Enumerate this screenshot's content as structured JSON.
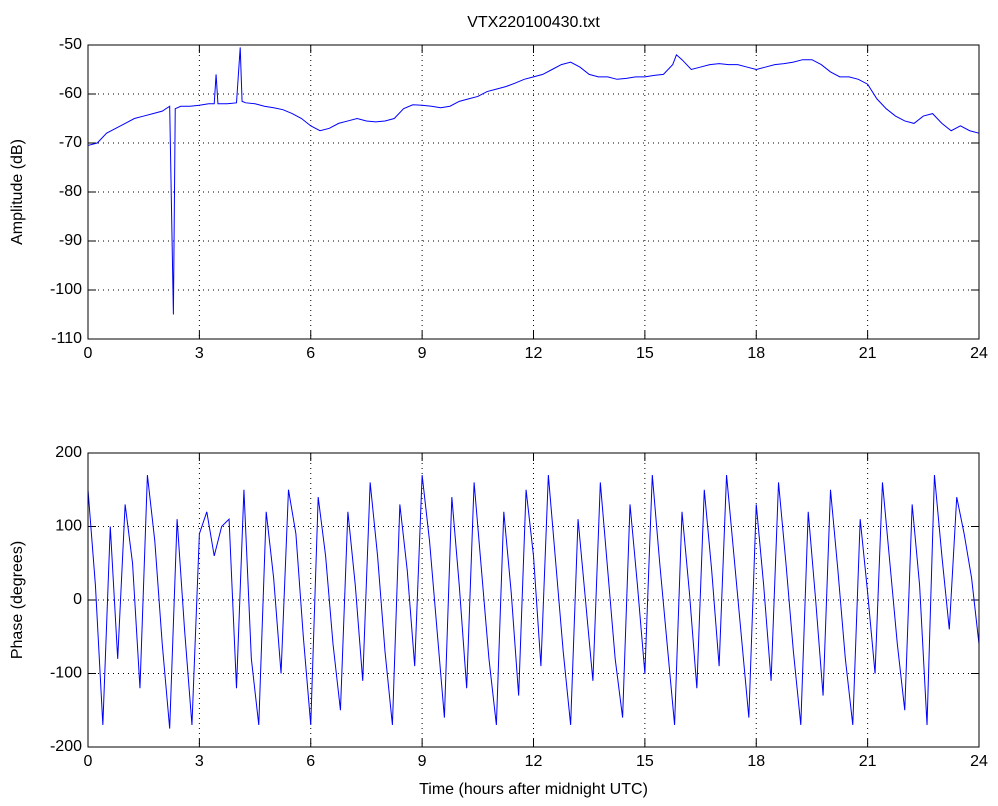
{
  "chart_data": [
    {
      "type": "line",
      "title": "VTX220100430.txt",
      "y_label": "Amplitude (dB)",
      "xlim": [
        0,
        24
      ],
      "xticks": [
        0,
        3,
        6,
        9,
        12,
        15,
        18,
        21,
        24
      ],
      "ylim": [
        -110,
        -50
      ],
      "yticks": [
        -110,
        -100,
        -90,
        -80,
        -70,
        -60,
        -50
      ],
      "grid": true,
      "series": [
        {
          "color": "#0000ff",
          "x": [
            0,
            0.25,
            0.5,
            0.75,
            1,
            1.25,
            1.5,
            1.75,
            2,
            2.2,
            2.3,
            2.35,
            2.5,
            2.75,
            3,
            3.25,
            3.4,
            3.45,
            3.5,
            3.75,
            4,
            4.1,
            4.15,
            4.25,
            4.5,
            4.75,
            5,
            5.25,
            5.5,
            5.75,
            6,
            6.25,
            6.5,
            6.75,
            7,
            7.25,
            7.5,
            7.75,
            8,
            8.25,
            8.5,
            8.75,
            9,
            9.25,
            9.5,
            9.75,
            10,
            10.25,
            10.5,
            10.75,
            11,
            11.25,
            11.5,
            11.75,
            12,
            12.25,
            12.5,
            12.75,
            13,
            13.25,
            13.5,
            13.75,
            14,
            14.25,
            14.5,
            14.75,
            15,
            15.25,
            15.5,
            15.75,
            15.85,
            16,
            16.25,
            16.5,
            16.75,
            17,
            17.25,
            17.5,
            17.75,
            18,
            18.25,
            18.5,
            18.75,
            19,
            19.25,
            19.5,
            19.75,
            20,
            20.25,
            20.5,
            20.75,
            21,
            21.25,
            21.5,
            21.75,
            22,
            22.25,
            22.5,
            22.75,
            23,
            23.25,
            23.5,
            23.75,
            24
          ],
          "values": [
            -70.5,
            -70,
            -68,
            -67,
            -66,
            -65,
            -64.5,
            -64,
            -63.5,
            -62.5,
            -105,
            -63,
            -62.5,
            -62.5,
            -62.3,
            -62,
            -62,
            -56,
            -62,
            -62,
            -61.8,
            -50.5,
            -61.5,
            -61.8,
            -62,
            -62.5,
            -62.8,
            -63.2,
            -64,
            -65,
            -66.5,
            -67.5,
            -67,
            -66,
            -65.5,
            -65,
            -65.5,
            -65.7,
            -65.5,
            -65,
            -63,
            -62.2,
            -62.3,
            -62.5,
            -62.8,
            -62.5,
            -61.5,
            -61,
            -60.5,
            -59.5,
            -59,
            -58.5,
            -57.8,
            -57,
            -56.5,
            -56,
            -55,
            -54,
            -53.5,
            -54.5,
            -56,
            -56.5,
            -56.5,
            -57,
            -56.8,
            -56.5,
            -56.5,
            -56.2,
            -56,
            -54,
            -52,
            -53,
            -55,
            -54.5,
            -54,
            -53.8,
            -54,
            -54,
            -54.5,
            -55,
            -54.5,
            -54,
            -53.8,
            -53.5,
            -53,
            -53,
            -54,
            -55.5,
            -56.5,
            -56.5,
            -57,
            -58,
            -61,
            -63,
            -64.5,
            -65.5,
            -66,
            -64.5,
            -64,
            -66,
            -67.5,
            -66.5,
            -67.5,
            -68
          ]
        }
      ]
    },
    {
      "type": "line",
      "x_label": "Time (hours after midnight UTC)",
      "y_label": "Phase (degrees)",
      "xlim": [
        0,
        24
      ],
      "xticks": [
        0,
        3,
        6,
        9,
        12,
        15,
        18,
        21,
        24
      ],
      "ylim": [
        -200,
        200
      ],
      "yticks": [
        -200,
        -100,
        0,
        100,
        200
      ],
      "grid": true,
      "series": [
        {
          "color": "#0000ff",
          "x": [
            0,
            0.2,
            0.4,
            0.6,
            0.8,
            1,
            1.2,
            1.4,
            1.6,
            1.8,
            2,
            2.2,
            2.4,
            2.6,
            2.8,
            3,
            3.2,
            3.4,
            3.6,
            3.8,
            4,
            4.2,
            4.4,
            4.6,
            4.8,
            5,
            5.2,
            5.4,
            5.6,
            5.8,
            6,
            6.2,
            6.4,
            6.6,
            6.8,
            7,
            7.2,
            7.4,
            7.6,
            7.8,
            8,
            8.2,
            8.4,
            8.6,
            8.8,
            9,
            9.2,
            9.4,
            9.6,
            9.8,
            10,
            10.2,
            10.4,
            10.6,
            10.8,
            11,
            11.2,
            11.4,
            11.6,
            11.8,
            12,
            12.2,
            12.4,
            12.6,
            12.8,
            13,
            13.2,
            13.4,
            13.6,
            13.8,
            14,
            14.2,
            14.4,
            14.6,
            14.8,
            15,
            15.2,
            15.4,
            15.6,
            15.8,
            16,
            16.2,
            16.4,
            16.6,
            16.8,
            17,
            17.2,
            17.4,
            17.6,
            17.8,
            18,
            18.2,
            18.4,
            18.6,
            18.8,
            19,
            19.2,
            19.4,
            19.6,
            19.8,
            20,
            20.2,
            20.4,
            20.6,
            20.8,
            21,
            21.2,
            21.4,
            21.6,
            21.8,
            22,
            22.2,
            22.4,
            22.6,
            22.8,
            23,
            23.2,
            23.4,
            23.6,
            23.8,
            24
          ],
          "values": [
            150,
            20,
            -170,
            100,
            -80,
            130,
            50,
            -120,
            170,
            80,
            -60,
            -175,
            110,
            -40,
            -170,
            90,
            120,
            60,
            100,
            110,
            -120,
            150,
            -80,
            -170,
            120,
            30,
            -100,
            150,
            90,
            -50,
            -170,
            140,
            60,
            -60,
            -150,
            120,
            20,
            -110,
            160,
            60,
            -70,
            -170,
            130,
            40,
            -90,
            170,
            80,
            -40,
            -160,
            140,
            20,
            -120,
            160,
            40,
            -80,
            -170,
            120,
            10,
            -130,
            150,
            60,
            -90,
            170,
            50,
            -70,
            -170,
            110,
            0,
            -110,
            160,
            40,
            -80,
            -160,
            130,
            20,
            -100,
            170,
            50,
            -60,
            -170,
            120,
            10,
            -120,
            150,
            40,
            -90,
            170,
            60,
            -50,
            -160,
            130,
            20,
            -110,
            160,
            50,
            -70,
            -170,
            120,
            0,
            -130,
            150,
            40,
            -80,
            -170,
            110,
            10,
            -100,
            160,
            50,
            -60,
            -150,
            130,
            20,
            -170,
            170,
            60,
            -40,
            140,
            90,
            30,
            -60
          ]
        }
      ]
    }
  ]
}
